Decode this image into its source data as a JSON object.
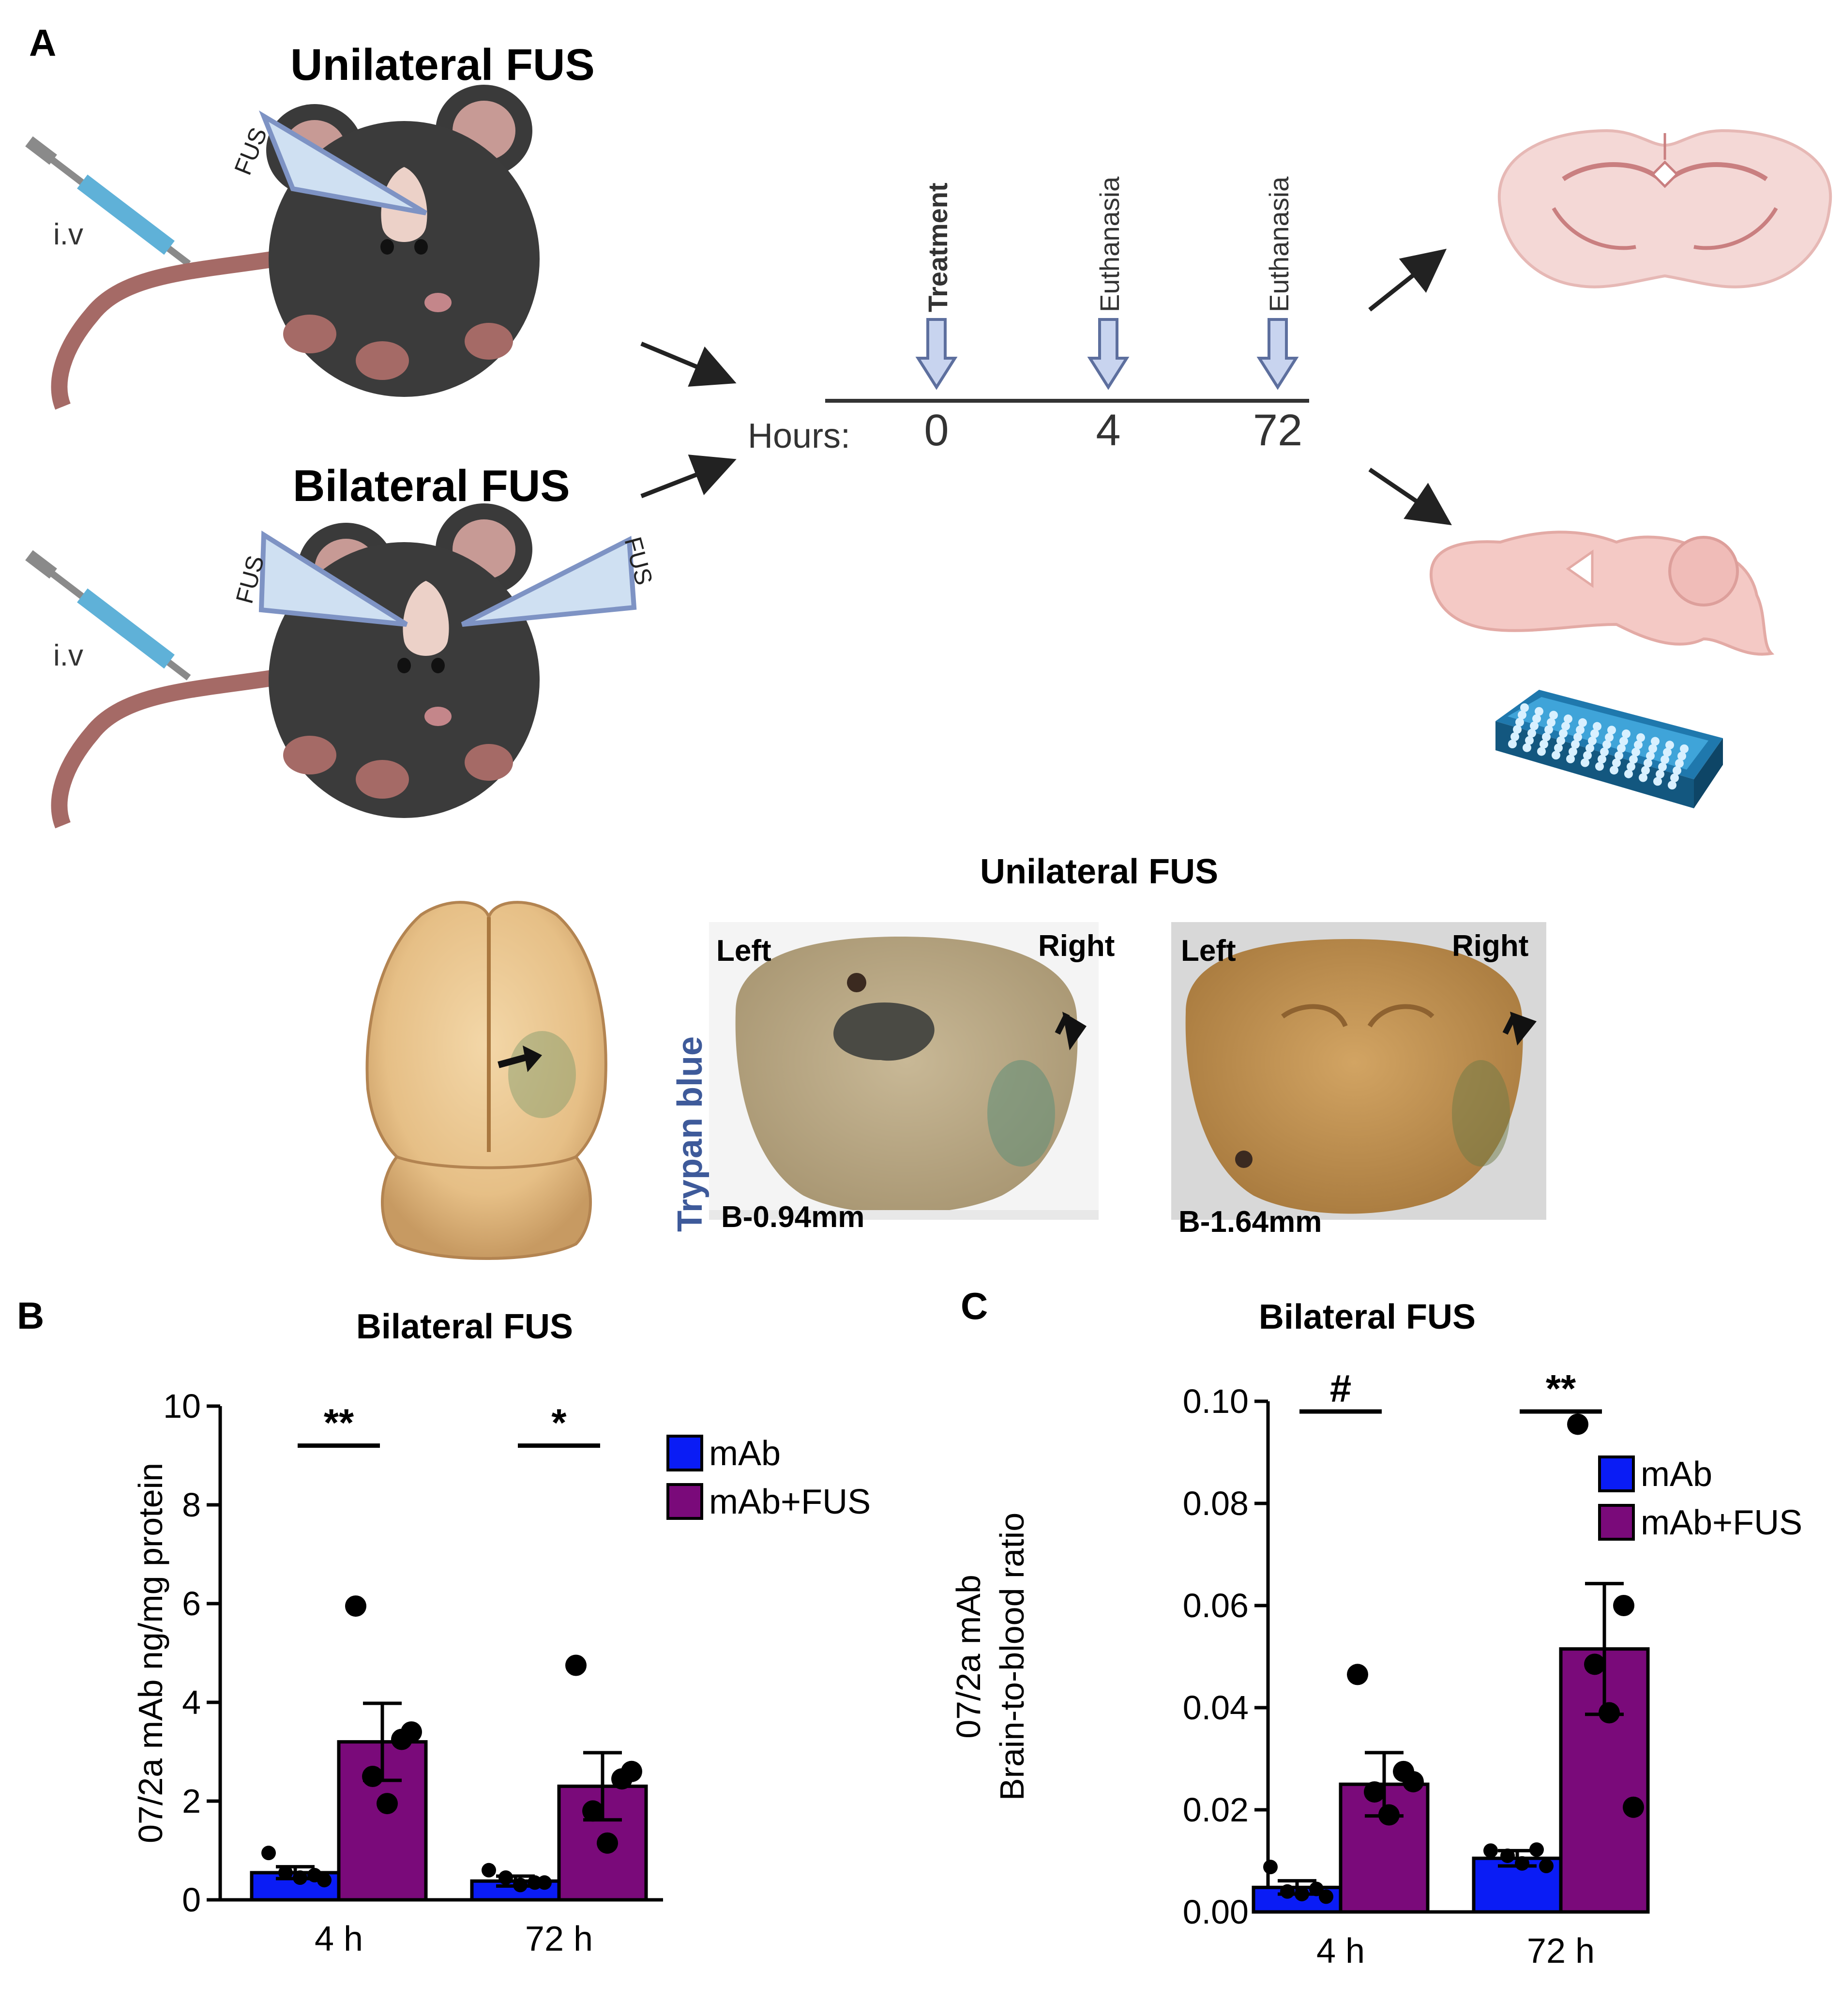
{
  "panelA": {
    "label": "A",
    "unilateral_title": "Unilateral FUS",
    "bilateral_title": "Bilateral FUS",
    "fus_label": "FUS",
    "iv_label": "i.v",
    "timeline": {
      "hours_label": "Hours:",
      "events": [
        {
          "hour": "0",
          "label": "Treatment"
        },
        {
          "hour": "4",
          "label": "Euthanasia"
        },
        {
          "hour": "72",
          "label": "Euthanasia"
        }
      ]
    },
    "photos": {
      "title": "Unilateral FUS",
      "side_label": "Trypan blue",
      "left": "Left",
      "right": "Right",
      "section1_coord": "B-0.94mm",
      "section2_coord": "B-1.64mm"
    }
  },
  "panelB": {
    "label": "B"
  },
  "panelC": {
    "label": "C"
  },
  "chart_data": [
    {
      "type": "bar",
      "panel": "B",
      "title": "Bilateral FUS",
      "ylabel": "07/2a mAb ng/mg protein",
      "xlabel": "",
      "categories": [
        "4 h",
        "72 h"
      ],
      "ylim": [
        0,
        10
      ],
      "yticks": [
        0,
        2,
        4,
        6,
        8,
        10
      ],
      "ytick_labels": [
        "0",
        "2",
        "4",
        "6",
        "8",
        "10"
      ],
      "series": [
        {
          "name": "mAb",
          "color": "#0a1cf5",
          "values": [
            0.55,
            0.38
          ],
          "sem": [
            0.12,
            0.1
          ],
          "points": [
            [
              0.95,
              0.5,
              0.55,
              0.45,
              0.4
            ],
            [
              0.6,
              0.35,
              0.45,
              0.3,
              0.35
            ]
          ]
        },
        {
          "name": "mAb+FUS",
          "color": "#7a0a7a",
          "values": [
            3.2,
            2.3
          ],
          "sem": [
            0.78,
            0.68
          ],
          "points": [
            [
              5.95,
              3.25,
              2.5,
              1.95,
              3.4
            ],
            [
              4.75,
              2.45,
              1.8,
              1.15,
              2.6
            ]
          ]
        }
      ],
      "significance": [
        {
          "category": "4 h",
          "label": "**",
          "y": 9.2
        },
        {
          "category": "72 h",
          "label": "*",
          "y": 9.2
        }
      ],
      "legend": "top-right"
    },
    {
      "type": "bar",
      "panel": "C",
      "title": "Bilateral FUS",
      "ylabel": [
        "07/2a mAb",
        "Brain-to-blood ratio"
      ],
      "xlabel": "",
      "categories": [
        "4 h",
        "72 h"
      ],
      "ylim": [
        0,
        0.1
      ],
      "yticks": [
        0,
        0.02,
        0.04,
        0.06,
        0.08,
        0.1
      ],
      "ytick_labels": [
        "0.00",
        "0.02",
        "0.04",
        "0.06",
        "0.08",
        "0.10"
      ],
      "series": [
        {
          "name": "mAb",
          "color": "#0a1cf5",
          "values": [
            0.0048,
            0.0105
          ],
          "sem": [
            0.0013,
            0.0015
          ],
          "points": [
            [
              0.0088,
              0.0045,
              0.004,
              0.0035,
              0.003
            ],
            [
              0.012,
              0.0122,
              0.011,
              0.0095,
              0.009
            ]
          ]
        },
        {
          "name": "mAb+FUS",
          "color": "#7a0a7a",
          "values": [
            0.025,
            0.0515
          ],
          "sem": [
            0.0062,
            0.0128
          ],
          "points": [
            [
              0.0465,
              0.0275,
              0.0235,
              0.019,
              0.0255
            ],
            [
              0.0955,
              0.06,
              0.0485,
              0.039,
              0.0205
            ]
          ]
        }
      ],
      "significance": [
        {
          "category": "4 h",
          "label": "#",
          "y": 0.098
        },
        {
          "category": "72 h",
          "label": "**",
          "y": 0.098
        }
      ],
      "legend": "top-right"
    }
  ]
}
